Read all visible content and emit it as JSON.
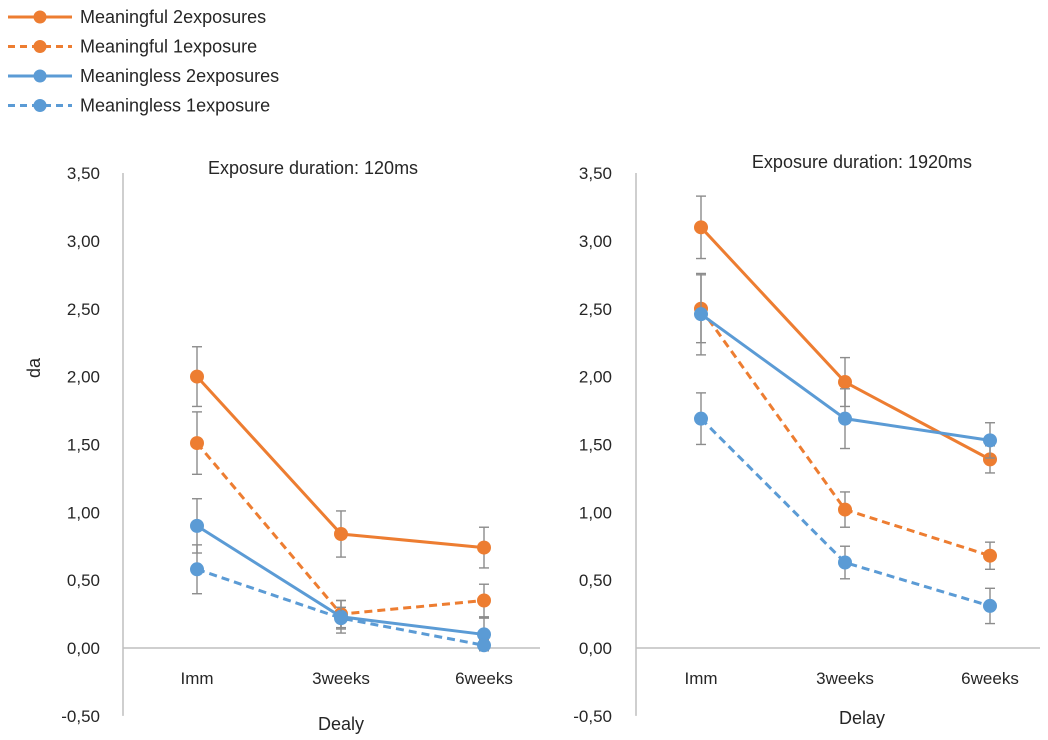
{
  "legend": [
    {
      "label": "Meaningful 2exposures",
      "color": "#ED7D31",
      "dash": false
    },
    {
      "label": "Meaningful 1exposure",
      "color": "#ED7D31",
      "dash": true
    },
    {
      "label": "Meaningless 2exposures",
      "color": "#5B9BD5",
      "dash": false
    },
    {
      "label": "Meaningless 1exposure",
      "color": "#5B9BD5",
      "dash": true
    }
  ],
  "chart_data": [
    {
      "type": "line",
      "title": "Exposure duration: 120ms",
      "xlabel": "Dealy",
      "ylabel": "da",
      "ylim": [
        -0.5,
        3.5
      ],
      "yticks": [
        "3,50",
        "3,00",
        "2,50",
        "2,00",
        "1,50",
        "1,00",
        "0,50",
        "0,00",
        "-0,50"
      ],
      "categories": [
        "Imm",
        "3weeks",
        "6weeks"
      ],
      "series": [
        {
          "name": "Meaningful 2exposures",
          "values": [
            2.0,
            0.84,
            0.74
          ],
          "errors": [
            0.22,
            0.17,
            0.15
          ]
        },
        {
          "name": "Meaningful 1exposure",
          "values": [
            1.51,
            0.25,
            0.35
          ],
          "errors": [
            0.23,
            0.1,
            0.12
          ]
        },
        {
          "name": "Meaningless 2exposures",
          "values": [
            0.9,
            0.23,
            0.1
          ],
          "errors": [
            0.2,
            0.12,
            0.12
          ]
        },
        {
          "name": "Meaningless 1exposure",
          "values": [
            0.58,
            0.22,
            0.02
          ],
          "errors": [
            0.18,
            0.08,
            0.04
          ]
        }
      ]
    },
    {
      "type": "line",
      "title": "Exposure duration: 1920ms",
      "xlabel": "Delay",
      "ylabel": "",
      "ylim": [
        -0.5,
        3.5
      ],
      "yticks": [
        "3,50",
        "3,00",
        "2,50",
        "2,00",
        "1,50",
        "1,00",
        "0,50",
        "0,00",
        "-0,50"
      ],
      "categories": [
        "Imm",
        "3weeks",
        "6weeks"
      ],
      "series": [
        {
          "name": "Meaningful 2exposures",
          "values": [
            3.1,
            1.96,
            1.39
          ],
          "errors": [
            0.23,
            0.18,
            0.1
          ]
        },
        {
          "name": "Meaningful 1exposure",
          "values": [
            2.5,
            1.02,
            0.68
          ],
          "errors": [
            0.25,
            0.13,
            0.1
          ]
        },
        {
          "name": "Meaningless 2exposures",
          "values": [
            2.46,
            1.69,
            1.53
          ],
          "errors": [
            0.3,
            0.22,
            0.13
          ]
        },
        {
          "name": "Meaningless 1exposure",
          "values": [
            1.69,
            0.63,
            0.31
          ],
          "errors": [
            0.19,
            0.12,
            0.13
          ]
        }
      ]
    }
  ]
}
